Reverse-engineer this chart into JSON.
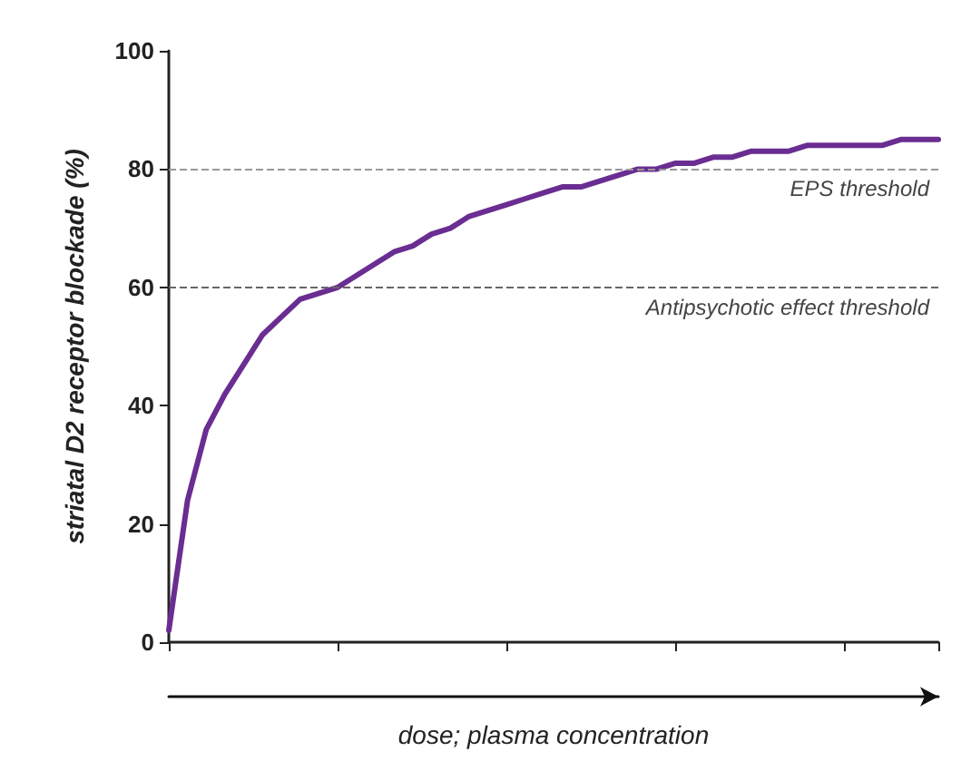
{
  "chart_data": {
    "type": "line",
    "ylabel": "striatal D2 receptor blockade (%)",
    "xlabel": "dose; plasma concentration",
    "categories": [
      null,
      null,
      null,
      null,
      null,
      null,
      null,
      null,
      null,
      null,
      null,
      null,
      null,
      null,
      null,
      null,
      null,
      null,
      null,
      null,
      null,
      null,
      null,
      null,
      null,
      null,
      null,
      null,
      null,
      null,
      null,
      null,
      null,
      null,
      null,
      null,
      null,
      null,
      null,
      null,
      null,
      null
    ],
    "series": [
      {
        "color": "#6a2d91",
        "values": [
          2,
          24,
          36,
          42,
          47,
          52,
          55,
          58,
          59,
          60,
          62,
          64,
          66,
          67,
          69,
          70,
          72,
          73,
          74,
          75,
          76,
          77,
          77,
          78,
          79,
          80,
          80,
          81,
          81,
          82,
          82,
          83,
          83,
          83,
          84,
          84,
          84,
          84,
          84,
          85,
          85,
          85
        ]
      }
    ],
    "ylim": [
      0,
      100
    ],
    "yticks": [
      0,
      20,
      40,
      60,
      80,
      100
    ],
    "grid": false,
    "marker": "none",
    "line_style": "solid",
    "ref_lines": [
      {
        "axis": "y",
        "value": 80,
        "label": "EPS threshold",
        "color": "#999999",
        "line_style": "dashed"
      },
      {
        "axis": "y",
        "value": 60,
        "label": "Antipsychotic effect threshold",
        "color": "#666666",
        "line_style": "dashed"
      }
    ]
  }
}
